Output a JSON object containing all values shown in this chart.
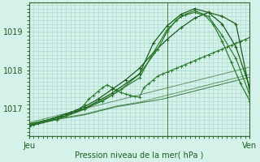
{
  "background_color": "#d5f2ea",
  "grid_color": "#a8d8cc",
  "line_dark": "#1a5c1a",
  "line_mid": "#2d7a2d",
  "title": "Pression niveau de la mer( hPa )",
  "yticks": [
    1017,
    1018,
    1019
  ],
  "ylim": [
    1016.3,
    1019.75
  ],
  "xlim": [
    0,
    48
  ],
  "xtick_positions": [
    0,
    30,
    48
  ],
  "xtick_labels": [
    "Jeu",
    "",
    "Ven"
  ],
  "vline_x": 30,
  "flat1_x": [
    0,
    1,
    2,
    3,
    4,
    5,
    6,
    7,
    8,
    9,
    10,
    11,
    12,
    13,
    14,
    15,
    16,
    17,
    18,
    19,
    20,
    21,
    22,
    23,
    24,
    25,
    26,
    27,
    28,
    29,
    30,
    31,
    32,
    33,
    34,
    35,
    36,
    37,
    38,
    39,
    40,
    41,
    42,
    43,
    44,
    45,
    46,
    47,
    48
  ],
  "flat1_y": [
    1016.6,
    1016.62,
    1016.64,
    1016.66,
    1016.68,
    1016.7,
    1016.72,
    1016.74,
    1016.76,
    1016.78,
    1016.8,
    1016.82,
    1016.84,
    1016.87,
    1016.9,
    1016.93,
    1016.96,
    1016.99,
    1017.02,
    1017.05,
    1017.07,
    1017.09,
    1017.11,
    1017.13,
    1017.15,
    1017.17,
    1017.19,
    1017.21,
    1017.23,
    1017.25,
    1017.28,
    1017.31,
    1017.34,
    1017.37,
    1017.4,
    1017.43,
    1017.46,
    1017.49,
    1017.52,
    1017.55,
    1017.58,
    1017.61,
    1017.64,
    1017.67,
    1017.7,
    1017.73,
    1017.76,
    1017.79,
    1017.82
  ],
  "flat2_x": [
    0,
    1,
    2,
    3,
    4,
    5,
    6,
    7,
    8,
    9,
    10,
    11,
    12,
    13,
    14,
    15,
    16,
    17,
    18,
    19,
    20,
    21,
    22,
    23,
    24,
    25,
    26,
    27,
    28,
    29,
    30,
    31,
    32,
    33,
    34,
    35,
    36,
    37,
    38,
    39,
    40,
    41,
    42,
    43,
    44,
    45,
    46,
    47,
    48
  ],
  "flat2_y": [
    1016.62,
    1016.64,
    1016.66,
    1016.68,
    1016.7,
    1016.72,
    1016.74,
    1016.76,
    1016.78,
    1016.8,
    1016.82,
    1016.84,
    1016.86,
    1016.89,
    1016.92,
    1016.95,
    1016.98,
    1017.01,
    1017.04,
    1017.07,
    1017.09,
    1017.11,
    1017.13,
    1017.15,
    1017.17,
    1017.2,
    1017.23,
    1017.26,
    1017.29,
    1017.32,
    1017.35,
    1017.38,
    1017.41,
    1017.44,
    1017.47,
    1017.5,
    1017.53,
    1017.56,
    1017.59,
    1017.62,
    1017.65,
    1017.68,
    1017.71,
    1017.74,
    1017.77,
    1017.8,
    1017.83,
    1017.86,
    1017.89
  ],
  "flat3_x": [
    0,
    1,
    2,
    3,
    4,
    5,
    6,
    7,
    8,
    9,
    10,
    11,
    12,
    13,
    14,
    15,
    16,
    17,
    18,
    19,
    20,
    21,
    22,
    23,
    24,
    25,
    26,
    27,
    28,
    29,
    30,
    31,
    32,
    33,
    34,
    35,
    36,
    37,
    38,
    39,
    40,
    41,
    42,
    43,
    44,
    45,
    46,
    47,
    48
  ],
  "flat3_y": [
    1016.64,
    1016.67,
    1016.7,
    1016.73,
    1016.76,
    1016.79,
    1016.82,
    1016.85,
    1016.88,
    1016.91,
    1016.94,
    1016.97,
    1017.0,
    1017.03,
    1017.06,
    1017.09,
    1017.12,
    1017.15,
    1017.18,
    1017.21,
    1017.24,
    1017.27,
    1017.3,
    1017.33,
    1017.36,
    1017.39,
    1017.42,
    1017.45,
    1017.48,
    1017.51,
    1017.54,
    1017.57,
    1017.6,
    1017.63,
    1017.66,
    1017.69,
    1017.72,
    1017.75,
    1017.78,
    1017.81,
    1017.84,
    1017.87,
    1017.9,
    1017.93,
    1017.96,
    1017.99,
    1018.02,
    1018.05,
    1018.08
  ],
  "zigzag_x": [
    0,
    1,
    2,
    3,
    4,
    5,
    6,
    7,
    8,
    9,
    10,
    11,
    12,
    13,
    14,
    15,
    16,
    17,
    18,
    19,
    20,
    21,
    22,
    23,
    24,
    25,
    26,
    27,
    28,
    29,
    30,
    31,
    32,
    33,
    34,
    35,
    36,
    37,
    38,
    39,
    40,
    41,
    42,
    43,
    44,
    45,
    46,
    47,
    48
  ],
  "zigzag_y": [
    1016.55,
    1016.58,
    1016.62,
    1016.66,
    1016.7,
    1016.74,
    1016.78,
    1016.82,
    1016.86,
    1016.9,
    1016.95,
    1017.0,
    1017.1,
    1017.25,
    1017.35,
    1017.45,
    1017.55,
    1017.62,
    1017.55,
    1017.48,
    1017.42,
    1017.38,
    1017.35,
    1017.32,
    1017.3,
    1017.55,
    1017.65,
    1017.75,
    1017.85,
    1017.9,
    1017.95,
    1018.0,
    1018.05,
    1018.1,
    1018.15,
    1018.2,
    1018.25,
    1018.3,
    1018.35,
    1018.4,
    1018.45,
    1018.5,
    1018.55,
    1018.6,
    1018.65,
    1018.7,
    1018.75,
    1018.8,
    1018.85
  ],
  "peak1_x": [
    0,
    3,
    6,
    9,
    12,
    15,
    18,
    21,
    24,
    27,
    30,
    33,
    36,
    39,
    42,
    45,
    48
  ],
  "peak1_y": [
    1016.6,
    1016.68,
    1016.78,
    1016.9,
    1017.05,
    1017.25,
    1017.5,
    1017.75,
    1018.05,
    1018.45,
    1018.8,
    1019.1,
    1019.35,
    1019.5,
    1019.4,
    1019.2,
    1017.45
  ],
  "peak2_x": [
    0,
    4,
    8,
    12,
    16,
    20,
    24,
    28,
    30,
    32,
    34,
    36,
    38,
    40,
    42,
    44,
    46,
    48
  ],
  "peak2_y": [
    1016.6,
    1016.7,
    1016.82,
    1017.0,
    1017.2,
    1017.5,
    1017.9,
    1018.55,
    1019.0,
    1019.3,
    1019.45,
    1019.55,
    1019.45,
    1019.2,
    1018.75,
    1018.2,
    1017.65,
    1017.2
  ],
  "peak3_x": [
    0,
    6,
    12,
    18,
    24,
    27,
    30,
    33,
    36,
    39,
    42,
    45,
    48
  ],
  "peak3_y": [
    1016.55,
    1016.72,
    1017.0,
    1017.4,
    1017.9,
    1018.7,
    1019.15,
    1019.45,
    1019.6,
    1019.5,
    1019.2,
    1018.6,
    1017.55
  ],
  "peak4_x": [
    0,
    6,
    12,
    18,
    24,
    27,
    30,
    33,
    36,
    39,
    42,
    45,
    48
  ],
  "peak4_y": [
    1016.58,
    1016.72,
    1016.98,
    1017.35,
    1017.8,
    1018.45,
    1019.05,
    1019.4,
    1019.5,
    1019.4,
    1018.9,
    1018.3,
    1017.35
  ]
}
